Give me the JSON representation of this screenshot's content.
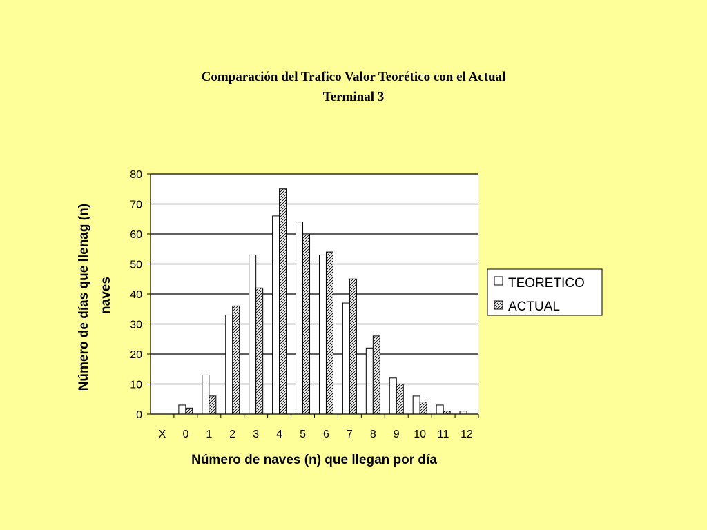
{
  "slide": {
    "background": "#FFFF99"
  },
  "chart_data": {
    "type": "bar",
    "title": "Comparación del Trafico Valor Teorético con el Actual",
    "subtitle": "Terminal 3",
    "xlabel": "Número de naves (n) que llegan por día",
    "ylabel": "Número de días que llenag (n) naves",
    "ylim": [
      0,
      80
    ],
    "yticks": [
      0,
      10,
      20,
      30,
      40,
      50,
      60,
      70,
      80
    ],
    "categories": [
      "X",
      "0",
      "1",
      "2",
      "3",
      "4",
      "5",
      "6",
      "7",
      "8",
      "9",
      "10",
      "11",
      "12"
    ],
    "series": [
      {
        "name": "TEORETICO",
        "values": [
          null,
          3,
          13,
          33,
          53,
          66,
          64,
          53,
          37,
          22,
          12,
          6,
          3,
          1
        ],
        "fill": "#FFFFFF"
      },
      {
        "name": "ACTUAL",
        "values": [
          null,
          2,
          6,
          36,
          42,
          75,
          60,
          54,
          45,
          26,
          10,
          4,
          1,
          null
        ],
        "fill": "hatch"
      }
    ],
    "grid": true,
    "legend": "right"
  }
}
